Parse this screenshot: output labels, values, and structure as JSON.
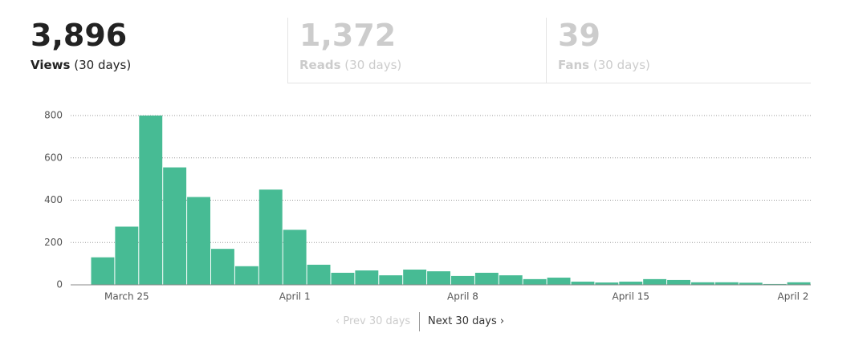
{
  "tabs": [
    {
      "value": "3,896",
      "label": "Views",
      "period": "(30 days)"
    },
    {
      "value": "1,372",
      "label": "Reads",
      "period": "(30 days)"
    },
    {
      "value": "39",
      "label": "Fans",
      "period": "(30 days)"
    }
  ],
  "pagination": {
    "prev": "Prev 30 days",
    "next": "Next 30 days"
  },
  "chart_data": {
    "type": "bar",
    "color": "#47bb94",
    "categories": [
      null,
      "March 25",
      null,
      null,
      null,
      null,
      null,
      null,
      "April 1",
      null,
      null,
      null,
      null,
      null,
      null,
      "April 8",
      null,
      null,
      null,
      null,
      null,
      null,
      "April 15",
      null,
      null,
      null,
      null,
      null,
      null,
      "April 2"
    ],
    "values": [
      130,
      275,
      800,
      555,
      415,
      170,
      88,
      450,
      260,
      95,
      57,
      68,
      45,
      72,
      64,
      42,
      57,
      45,
      27,
      34,
      15,
      11,
      15,
      27,
      23,
      12,
      12,
      10,
      4,
      12
    ],
    "ylim": [
      0,
      800
    ],
    "yticks": [
      0,
      200,
      400,
      600,
      800
    ],
    "grid": true
  }
}
